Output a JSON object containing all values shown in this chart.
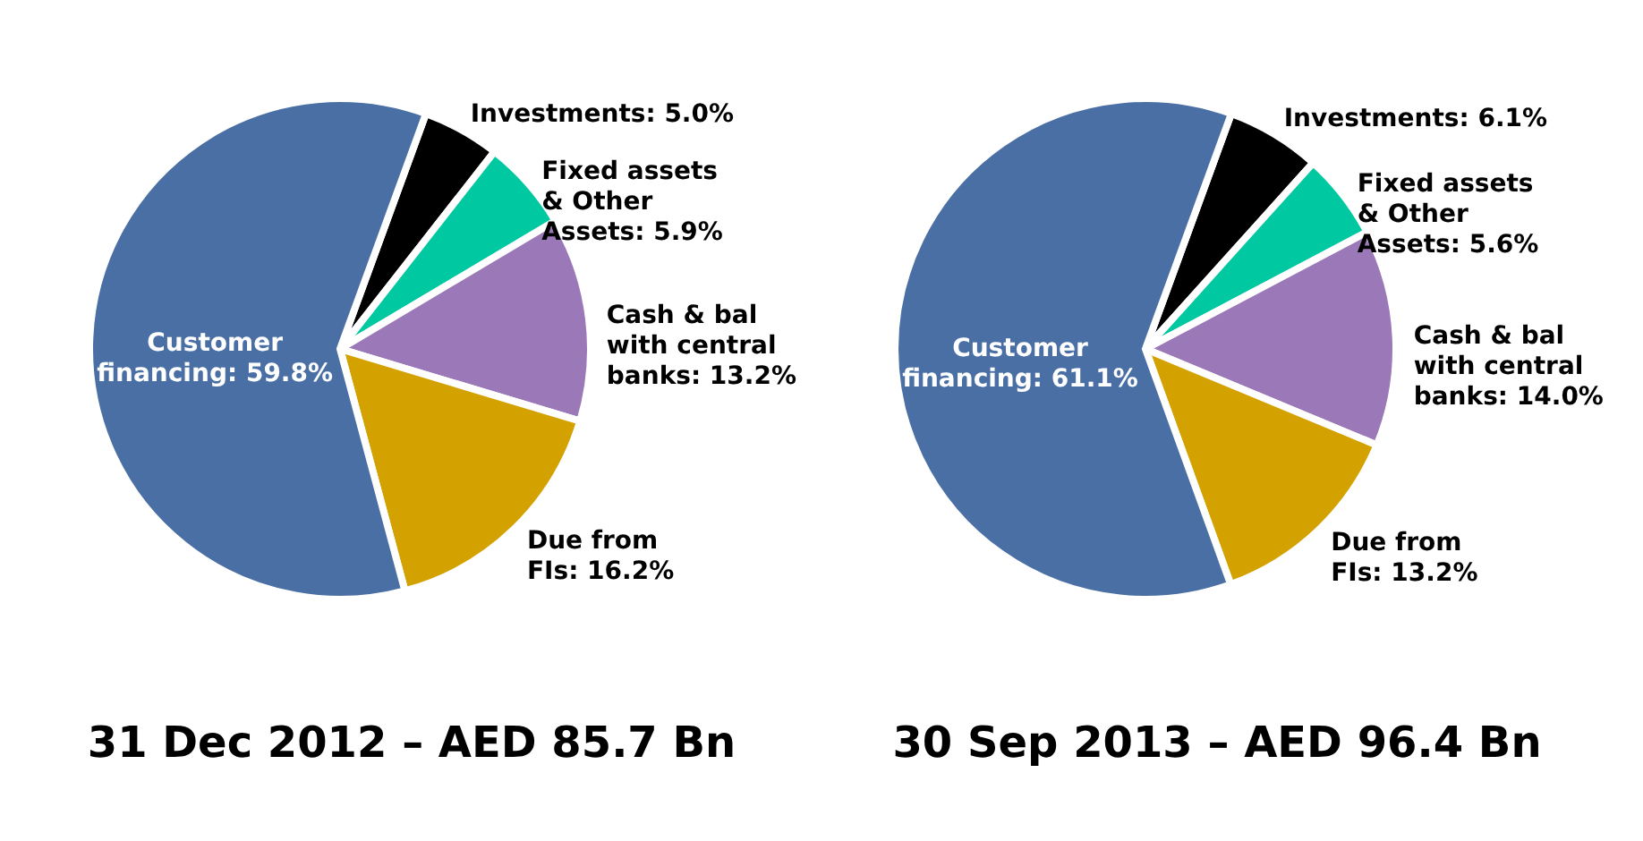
{
  "chart_data": [
    {
      "type": "pie",
      "title": "31 Dec 2012 – AED 85.7 Bn",
      "categories": [
        "Investments",
        "Fixed assets & Other Assets",
        "Cash & bal with central banks",
        "Due from FIs",
        "Customer financing"
      ],
      "values": [
        5.0,
        5.9,
        13.2,
        16.2,
        59.8
      ],
      "value_labels": [
        "5.0%",
        "5.9%",
        "13.2%",
        "16.2%",
        "59.8%"
      ],
      "colors": [
        "#000000",
        "#00c8a0",
        "#9b78b8",
        "#d4a200",
        "#4a6fa5"
      ],
      "legend": false
    },
    {
      "type": "pie",
      "title": "30 Sep 2013 – AED 96.4 Bn",
      "categories": [
        "Investments",
        "Fixed assets & Other Assets",
        "Cash & bal with central banks",
        "Due from FIs",
        "Customer financing"
      ],
      "values": [
        6.1,
        5.6,
        14.0,
        13.2,
        61.1
      ],
      "value_labels": [
        "6.1%",
        "5.6%",
        "14.0%",
        "13.2%",
        "61.1%"
      ],
      "colors": [
        "#000000",
        "#00c8a0",
        "#9b78b8",
        "#d4a200",
        "#4a6fa5"
      ],
      "legend": false
    }
  ]
}
